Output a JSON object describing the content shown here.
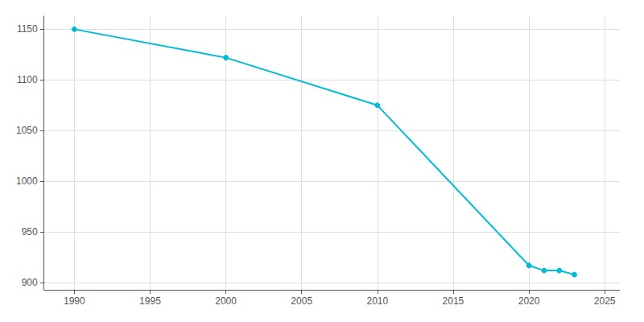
{
  "chart_data": {
    "type": "line",
    "x": [
      1990,
      2000,
      2010,
      2020,
      2021,
      2022,
      2023
    ],
    "values": [
      1150,
      1122,
      1075,
      917,
      912,
      912,
      908
    ],
    "color": "#00BCD4",
    "marker": "circle",
    "xlim": [
      1988,
      2026
    ],
    "ylim": [
      893,
      1163
    ],
    "xticks": [
      1990,
      1995,
      2000,
      2005,
      2010,
      2015,
      2020,
      2025
    ],
    "yticks": [
      900,
      950,
      1000,
      1050,
      1100,
      1150
    ],
    "grid": true
  }
}
